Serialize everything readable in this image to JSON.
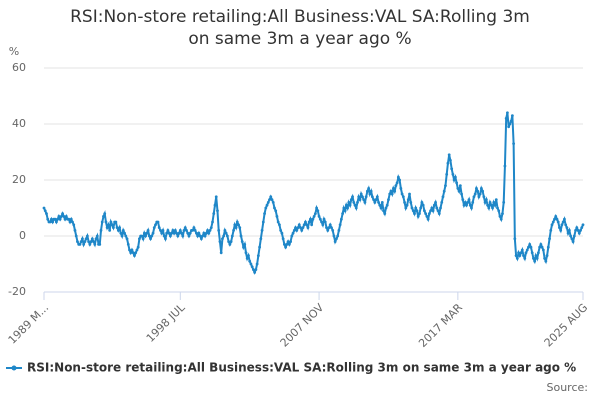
{
  "chart_data": {
    "type": "line",
    "title": "RSI:Non-store retailing:All Business:VAL SA:Rolling 3m on same 3m a year ago %",
    "y_label": "%",
    "source": "Source:",
    "categories": [
      "1989 M...",
      null,
      null,
      null,
      null,
      null,
      null,
      null,
      null,
      null,
      null,
      null,
      null,
      null,
      null,
      null,
      null,
      null,
      null,
      null,
      null,
      null,
      null,
      null,
      null,
      null,
      null,
      null,
      null,
      null,
      null,
      null,
      null,
      null,
      null,
      null,
      null,
      null,
      null,
      null,
      null,
      null,
      null,
      null,
      null,
      null,
      null,
      null,
      null,
      null,
      null,
      null,
      null,
      null,
      null,
      null,
      null,
      null,
      null,
      null,
      null,
      null,
      null,
      null,
      null,
      null,
      null,
      null,
      null,
      null,
      null,
      null,
      null,
      null,
      null,
      null,
      null,
      null,
      null,
      null,
      null,
      null,
      null,
      null,
      null,
      null,
      null,
      null,
      null,
      null,
      null,
      null,
      null,
      null,
      null,
      null,
      null,
      null,
      null,
      null,
      null,
      null,
      null,
      null,
      null,
      null,
      null,
      null,
      null,
      null,
      "1998 JUL",
      null,
      null,
      null,
      null,
      null,
      null,
      null,
      null,
      null,
      null,
      null,
      null,
      null,
      null,
      null,
      null,
      null,
      null,
      null,
      null,
      null,
      null,
      null,
      null,
      null,
      null,
      null,
      null,
      null,
      null,
      null,
      null,
      null,
      null,
      null,
      null,
      null,
      null,
      null,
      null,
      null,
      null,
      null,
      null,
      null,
      null,
      null,
      null,
      null,
      null,
      null,
      null,
      null,
      null,
      null,
      null,
      null,
      null,
      null,
      null,
      null,
      null,
      null,
      null,
      null,
      null,
      null,
      null,
      null,
      null,
      null,
      null,
      null,
      null,
      null,
      null,
      null,
      null,
      null,
      null,
      null,
      null,
      null,
      null,
      null,
      null,
      null,
      null,
      null,
      null,
      null,
      null,
      null,
      null,
      null,
      null,
      null,
      null,
      null,
      null,
      null,
      null,
      null,
      null,
      null,
      null,
      null,
      null,
      null,
      null,
      null,
      "2007 NOV",
      null,
      null,
      null,
      null,
      null,
      null,
      null,
      null,
      null,
      null,
      null,
      null,
      null,
      null,
      null,
      null,
      null,
      null,
      null,
      null,
      null,
      null,
      null,
      null,
      null,
      null,
      null,
      null,
      null,
      null,
      null,
      null,
      null,
      null,
      null,
      null,
      null,
      null,
      null,
      null,
      null,
      null,
      null,
      null,
      null,
      null,
      null,
      null,
      null,
      null,
      null,
      null,
      null,
      null,
      null,
      null,
      null,
      null,
      null,
      null,
      null,
      null,
      null,
      null,
      null,
      null,
      null,
      null,
      null,
      null,
      null,
      null,
      null,
      null,
      null,
      null,
      null,
      null,
      null,
      null,
      null,
      null,
      null,
      null,
      null,
      null,
      null,
      null,
      null,
      null,
      null,
      null,
      null,
      null,
      null,
      null,
      null,
      null,
      null,
      null,
      null,
      null,
      null,
      null,
      null,
      null,
      null,
      null,
      null,
      null,
      null,
      "2017 MAR",
      null,
      null,
      null,
      null,
      null,
      null,
      null,
      null,
      null,
      null,
      null,
      null,
      null,
      null,
      null,
      null,
      null,
      null,
      null,
      null,
      null,
      null,
      null,
      null,
      null,
      null,
      null,
      null,
      null,
      null,
      null,
      null,
      null,
      null,
      null,
      null,
      null,
      null,
      null,
      null,
      null,
      null,
      null,
      null,
      null,
      null,
      null,
      null,
      null,
      null,
      null,
      null,
      null,
      null,
      null,
      null,
      null,
      null,
      null,
      null,
      null,
      null,
      null,
      null,
      null,
      null,
      null,
      null,
      null,
      null,
      null,
      null,
      null,
      null,
      null,
      null,
      null,
      null,
      null,
      null,
      null,
      null,
      null,
      null,
      null,
      null,
      null,
      null,
      null,
      null,
      null,
      null,
      null,
      null,
      null,
      null,
      null,
      null,
      null,
      null,
      "2025 AUG"
    ],
    "series": [
      {
        "name": "RSI:Non-store retailing:All Business:VAL SA:Rolling 3m on same 3m a year ago %",
        "color": "#1f87c8",
        "values": [
          10,
          9,
          8,
          6,
          5,
          5,
          6,
          5,
          6,
          6,
          5,
          6,
          7,
          6,
          7,
          8,
          7,
          6,
          7,
          6,
          6,
          5,
          6,
          5,
          4,
          2,
          0,
          -2,
          -3,
          -3,
          -2,
          -1,
          -3,
          -2,
          -1,
          0,
          -2,
          -3,
          -2,
          -1,
          -2,
          -3,
          -1,
          0,
          -3,
          -3,
          2,
          5,
          7,
          8,
          5,
          3,
          4,
          2,
          5,
          4,
          3,
          5,
          5,
          3,
          2,
          3,
          1,
          0,
          2,
          1,
          0,
          -1,
          -3,
          -5,
          -6,
          -5,
          -6,
          -7,
          -6,
          -5,
          -4,
          -1,
          0,
          0,
          -1,
          1,
          0,
          1,
          2,
          0,
          -1,
          0,
          1,
          3,
          4,
          5,
          5,
          3,
          2,
          1,
          2,
          0,
          -1,
          1,
          2,
          1,
          0,
          1,
          2,
          1,
          2,
          1,
          0,
          1,
          2,
          1,
          0,
          2,
          3,
          2,
          1,
          0,
          1,
          2,
          2,
          3,
          2,
          1,
          0,
          1,
          0,
          -1,
          0,
          1,
          0,
          1,
          2,
          1,
          2,
          3,
          5,
          8,
          11,
          14,
          9,
          2,
          -2,
          -6,
          -1,
          0,
          2,
          1,
          0,
          -2,
          -3,
          -2,
          0,
          2,
          4,
          3,
          5,
          4,
          3,
          0,
          -2,
          -4,
          -3,
          -6,
          -8,
          -7,
          -9,
          -10,
          -11,
          -12,
          -13,
          -12,
          -10,
          -7,
          -4,
          -1,
          2,
          5,
          8,
          10,
          11,
          12,
          13,
          14,
          13,
          12,
          10,
          9,
          7,
          5,
          4,
          2,
          1,
          -1,
          -3,
          -4,
          -3,
          -2,
          -3,
          -2,
          0,
          1,
          2,
          3,
          2,
          3,
          4,
          3,
          2,
          3,
          4,
          5,
          4,
          3,
          5,
          6,
          4,
          6,
          7,
          8,
          10,
          9,
          7,
          6,
          5,
          4,
          6,
          5,
          3,
          2,
          3,
          4,
          3,
          2,
          0,
          -2,
          -1,
          0,
          2,
          4,
          6,
          8,
          10,
          9,
          11,
          10,
          12,
          11,
          13,
          14,
          12,
          11,
          10,
          12,
          14,
          13,
          15,
          14,
          13,
          12,
          14,
          16,
          17,
          15,
          16,
          14,
          13,
          12,
          13,
          14,
          12,
          11,
          10,
          12,
          9,
          8,
          10,
          11,
          13,
          15,
          16,
          15,
          17,
          16,
          18,
          19,
          21,
          20,
          17,
          15,
          14,
          12,
          10,
          11,
          13,
          15,
          12,
          10,
          9,
          8,
          10,
          9,
          7,
          8,
          10,
          12,
          11,
          9,
          8,
          7,
          6,
          8,
          9,
          10,
          9,
          11,
          12,
          10,
          9,
          8,
          10,
          12,
          14,
          16,
          18,
          22,
          26,
          29,
          27,
          24,
          22,
          20,
          21,
          19,
          17,
          16,
          18,
          15,
          13,
          11,
          12,
          11,
          12,
          13,
          11,
          10,
          12,
          14,
          15,
          17,
          16,
          14,
          15,
          17,
          16,
          14,
          12,
          13,
          11,
          10,
          12,
          11,
          10,
          12,
          11,
          13,
          10,
          9,
          7,
          6,
          8,
          12,
          25,
          42,
          44,
          39,
          40,
          41,
          43,
          33,
          -1,
          -7,
          -8,
          -6,
          -7,
          -6,
          -5,
          -7,
          -8,
          -6,
          -5,
          -4,
          -3,
          -4,
          -6,
          -8,
          -9,
          -7,
          -8,
          -6,
          -4,
          -3,
          -4,
          -5,
          -8,
          -9,
          -7,
          -4,
          -1,
          2,
          4,
          5,
          6,
          7,
          6,
          5,
          3,
          2,
          4,
          5,
          6,
          4,
          3,
          1,
          2,
          0,
          -1,
          -2,
          0,
          2,
          3,
          2,
          1,
          2,
          3,
          4
        ]
      }
    ],
    "ylim": [
      -20,
      60
    ],
    "yticks": [
      -20,
      0,
      20,
      40,
      60
    ],
    "grid": true,
    "legend": "bottom"
  }
}
